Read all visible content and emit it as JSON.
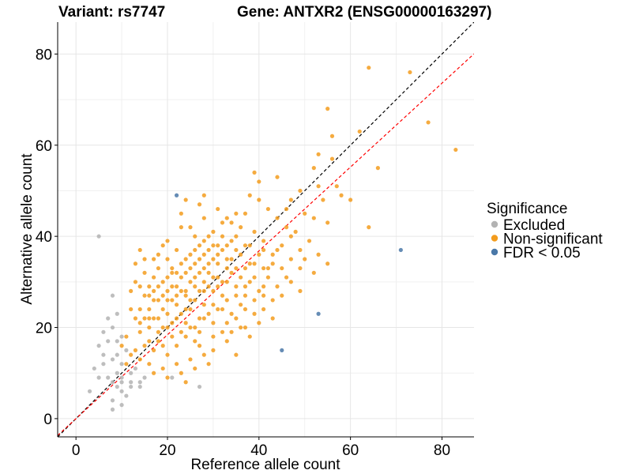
{
  "chart_data": {
    "type": "scatter",
    "title_left": "Variant: rs7747",
    "title_right": "Gene: ANTXR2 (ENSG00000163297)",
    "xlabel": "Reference allele count",
    "ylabel": "Alternative allele count",
    "xlim": [
      -4,
      87
    ],
    "ylim": [
      -4,
      87
    ],
    "x_ticks": [
      0,
      20,
      40,
      60,
      80
    ],
    "y_ticks": [
      0,
      20,
      40,
      60,
      80
    ],
    "grid": true,
    "legend": {
      "title": "Significance",
      "placement": "right",
      "entries": [
        {
          "label": "Excluded",
          "color": "#b3b3b3"
        },
        {
          "label": "Non-significant",
          "color": "#f39c1d"
        },
        {
          "label": "FDR < 0.05",
          "color": "#4a78a8"
        }
      ]
    },
    "reference_lines": [
      {
        "name": "identity",
        "slope": 1,
        "intercept": 0,
        "color": "#000000",
        "style": "dashed"
      },
      {
        "name": "fit",
        "slope": 0.92,
        "intercept": 0,
        "color": "#ff0000",
        "style": "dashed"
      }
    ],
    "series": [
      {
        "name": "Excluded",
        "color": "#b3b3b3",
        "points": [
          [
            5,
            40
          ],
          [
            8,
            27
          ],
          [
            7,
            22
          ],
          [
            8,
            20
          ],
          [
            9,
            23
          ],
          [
            6,
            19
          ],
          [
            5,
            16
          ],
          [
            6,
            14
          ],
          [
            8,
            13
          ],
          [
            10,
            12
          ],
          [
            9,
            10
          ],
          [
            7,
            9
          ],
          [
            10,
            9
          ],
          [
            5,
            9
          ],
          [
            3,
            6
          ],
          [
            8,
            8
          ],
          [
            10,
            8
          ],
          [
            9,
            7
          ],
          [
            12,
            7
          ],
          [
            14,
            7
          ],
          [
            11,
            5
          ],
          [
            8,
            4
          ],
          [
            10,
            3
          ],
          [
            8,
            2
          ],
          [
            12,
            8
          ],
          [
            15,
            9
          ],
          [
            13,
            11
          ],
          [
            11,
            15
          ],
          [
            9,
            17
          ],
          [
            10,
            18
          ],
          [
            21,
            9
          ],
          [
            27,
            7
          ],
          [
            7,
            17
          ],
          [
            9,
            14
          ],
          [
            10,
            6
          ],
          [
            4,
            11
          ],
          [
            6,
            12
          ],
          [
            12,
            10
          ],
          [
            14,
            8
          ]
        ]
      },
      {
        "name": "FDR < 0.05",
        "color": "#4a78a8",
        "points": [
          [
            22,
            49
          ],
          [
            71,
            37
          ],
          [
            53,
            23
          ],
          [
            45,
            15
          ]
        ]
      },
      {
        "name": "Non-significant",
        "color": "#f39c1d",
        "points": [
          [
            64,
            77
          ],
          [
            73,
            76
          ],
          [
            55,
            68
          ],
          [
            62,
            63
          ],
          [
            56,
            62
          ],
          [
            77,
            65
          ],
          [
            83,
            59
          ],
          [
            53,
            58
          ],
          [
            56,
            57
          ],
          [
            52,
            55
          ],
          [
            66,
            55
          ],
          [
            39,
            54
          ],
          [
            44,
            53
          ],
          [
            53,
            51
          ],
          [
            57,
            51
          ],
          [
            40,
            52
          ],
          [
            49,
            50
          ],
          [
            58,
            49
          ],
          [
            60,
            48
          ],
          [
            64,
            42
          ],
          [
            28,
            49
          ],
          [
            38,
            49
          ],
          [
            47,
            48
          ],
          [
            46,
            46
          ],
          [
            54,
            48
          ],
          [
            52,
            44
          ],
          [
            50,
            45
          ],
          [
            55,
            43
          ],
          [
            48,
            41
          ],
          [
            51,
            39
          ],
          [
            53,
            36
          ],
          [
            55,
            34
          ],
          [
            52,
            32
          ],
          [
            49,
            33
          ],
          [
            47,
            35
          ],
          [
            46,
            31
          ],
          [
            44,
            29
          ],
          [
            43,
            26
          ],
          [
            41,
            24
          ],
          [
            42,
            33
          ],
          [
            44,
            37
          ],
          [
            41,
            39
          ],
          [
            39,
            41
          ],
          [
            36,
            42
          ],
          [
            33,
            44
          ],
          [
            31,
            46
          ],
          [
            27,
            47
          ],
          [
            24,
            48
          ],
          [
            32,
            40
          ],
          [
            18,
            36
          ],
          [
            21,
            33
          ],
          [
            15,
            35
          ],
          [
            14,
            37
          ],
          [
            13,
            34
          ],
          [
            16,
            29
          ],
          [
            12,
            28
          ],
          [
            13,
            22
          ],
          [
            11,
            18
          ],
          [
            10,
            16
          ],
          [
            12,
            14
          ],
          [
            11,
            12
          ],
          [
            14,
            13
          ],
          [
            13,
            15
          ],
          [
            16,
            12
          ],
          [
            17,
            10
          ],
          [
            19,
            11
          ],
          [
            22,
            12
          ],
          [
            20,
            9
          ],
          [
            23,
            10
          ],
          [
            25,
            13
          ],
          [
            28,
            14
          ],
          [
            26,
            11
          ],
          [
            24,
            8
          ],
          [
            29,
            12
          ],
          [
            27,
            16
          ],
          [
            30,
            15
          ],
          [
            33,
            17
          ],
          [
            35,
            14
          ],
          [
            32,
            19
          ],
          [
            36,
            20
          ],
          [
            38,
            18
          ],
          [
            40,
            21
          ],
          [
            37,
            24
          ],
          [
            35,
            27
          ],
          [
            33,
            30
          ],
          [
            31,
            34
          ],
          [
            29,
            37
          ],
          [
            26,
            40
          ],
          [
            23,
            42
          ],
          [
            20,
            39
          ],
          [
            17,
            31
          ],
          [
            15,
            27
          ],
          [
            14,
            24
          ],
          [
            16,
            20
          ],
          [
            18,
            17
          ],
          [
            20,
            14
          ],
          [
            22,
            16
          ],
          [
            24,
            18
          ],
          [
            26,
            20
          ],
          [
            28,
            22
          ],
          [
            30,
            25
          ],
          [
            32,
            27
          ],
          [
            34,
            23
          ],
          [
            36,
            25
          ],
          [
            38,
            30
          ],
          [
            40,
            28
          ],
          [
            42,
            31
          ],
          [
            40,
            36
          ],
          [
            38,
            38
          ],
          [
            35,
            37
          ],
          [
            34,
            35
          ],
          [
            30,
            31
          ],
          [
            28,
            28
          ],
          [
            26,
            26
          ],
          [
            24,
            24
          ],
          [
            22,
            22
          ],
          [
            20,
            20
          ],
          [
            18,
            22
          ],
          [
            16,
            24
          ],
          [
            19,
            27
          ],
          [
            21,
            29
          ],
          [
            23,
            31
          ],
          [
            25,
            33
          ],
          [
            27,
            35
          ],
          [
            29,
            32
          ],
          [
            31,
            29
          ],
          [
            33,
            26
          ],
          [
            35,
            22
          ],
          [
            37,
            20
          ],
          [
            39,
            23
          ],
          [
            41,
            27
          ],
          [
            43,
            34
          ],
          [
            45,
            38
          ],
          [
            47,
            40
          ],
          [
            49,
            37
          ],
          [
            46,
            42
          ],
          [
            44,
            44
          ],
          [
            42,
            46
          ],
          [
            37,
            45
          ],
          [
            34,
            43
          ],
          [
            30,
            41
          ],
          [
            28,
            39
          ],
          [
            26,
            37
          ],
          [
            24,
            35
          ],
          [
            22,
            37
          ],
          [
            20,
            35
          ],
          [
            18,
            33
          ],
          [
            17,
            26
          ],
          [
            19,
            24
          ],
          [
            21,
            26
          ],
          [
            23,
            28
          ],
          [
            25,
            30
          ],
          [
            27,
            32
          ],
          [
            29,
            34
          ],
          [
            31,
            36
          ],
          [
            33,
            38
          ],
          [
            35,
            40
          ],
          [
            37,
            33
          ],
          [
            39,
            31
          ],
          [
            41,
            29
          ],
          [
            43,
            22
          ],
          [
            45,
            27
          ],
          [
            47,
            30
          ],
          [
            49,
            28
          ],
          [
            50,
            35
          ],
          [
            36,
            31
          ],
          [
            32,
            24
          ],
          [
            28,
            25
          ],
          [
            30,
            21
          ],
          [
            34,
            19
          ],
          [
            26,
            17
          ],
          [
            24,
            21
          ],
          [
            22,
            25
          ],
          [
            20,
            23
          ],
          [
            18,
            19
          ],
          [
            16,
            17
          ],
          [
            14,
            19
          ],
          [
            12,
            24
          ],
          [
            13,
            30
          ],
          [
            15,
            32
          ],
          [
            17,
            28
          ],
          [
            19,
            30
          ],
          [
            21,
            32
          ],
          [
            23,
            34
          ],
          [
            25,
            36
          ],
          [
            27,
            38
          ],
          [
            29,
            40
          ],
          [
            31,
            38
          ],
          [
            33,
            33
          ],
          [
            35,
            29
          ],
          [
            37,
            27
          ],
          [
            39,
            26
          ],
          [
            41,
            33
          ],
          [
            43,
            36
          ],
          [
            45,
            33
          ],
          [
            38,
            34
          ],
          [
            36,
            36
          ],
          [
            34,
            32
          ],
          [
            32,
            30
          ],
          [
            30,
            28
          ],
          [
            28,
            30
          ],
          [
            26,
            29
          ],
          [
            24,
            27
          ],
          [
            22,
            29
          ],
          [
            20,
            31
          ],
          [
            18,
            29
          ],
          [
            16,
            27
          ],
          [
            14,
            29
          ],
          [
            15,
            22
          ],
          [
            17,
            22
          ],
          [
            19,
            20
          ],
          [
            21,
            21
          ],
          [
            23,
            23
          ],
          [
            25,
            24
          ],
          [
            27,
            22
          ],
          [
            29,
            23
          ],
          [
            31,
            24
          ],
          [
            33,
            21
          ],
          [
            30,
            18
          ],
          [
            27,
            19
          ],
          [
            25,
            20
          ],
          [
            23,
            19
          ],
          [
            21,
            18
          ],
          [
            19,
            16
          ],
          [
            17,
            15
          ],
          [
            15,
            16
          ],
          [
            20,
            26
          ],
          [
            22,
            27
          ],
          [
            24,
            28
          ],
          [
            26,
            31
          ],
          [
            28,
            33
          ],
          [
            30,
            35
          ],
          [
            32,
            37
          ],
          [
            34,
            39
          ],
          [
            30,
            38
          ],
          [
            28,
            36
          ],
          [
            26,
            34
          ],
          [
            24,
            32
          ],
          [
            22,
            32
          ],
          [
            20,
            28
          ],
          [
            18,
            26
          ],
          [
            16,
            22
          ],
          [
            14,
            21
          ],
          [
            25,
            26
          ],
          [
            27,
            28
          ],
          [
            29,
            29
          ],
          [
            31,
            31
          ],
          [
            33,
            35
          ],
          [
            35,
            33
          ],
          [
            37,
            29
          ],
          [
            39,
            34
          ],
          [
            41,
            37
          ],
          [
            37,
            38
          ],
          [
            25,
            42
          ],
          [
            28,
            44
          ],
          [
            32,
            43
          ],
          [
            35,
            45
          ],
          [
            40,
            48
          ],
          [
            23,
            45
          ],
          [
            19,
            38
          ],
          [
            17,
            35
          ]
        ]
      }
    ]
  }
}
